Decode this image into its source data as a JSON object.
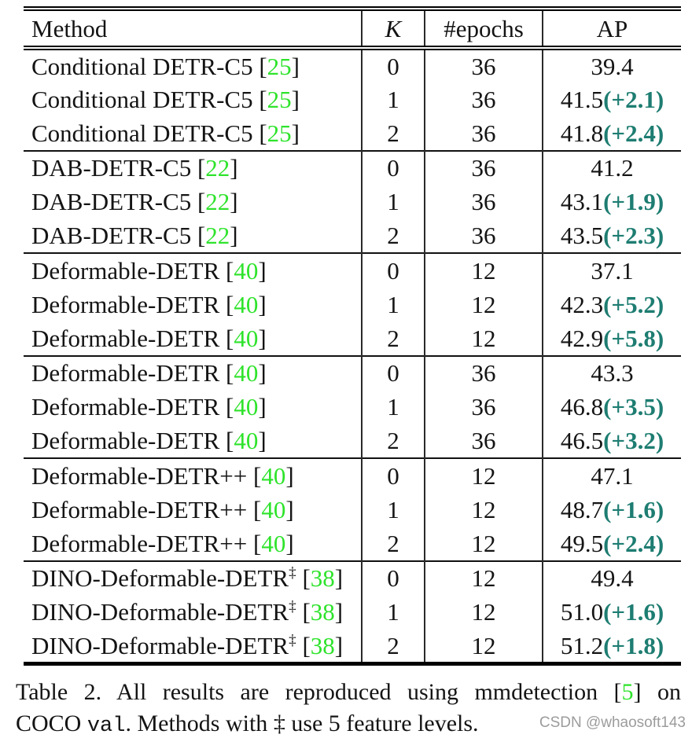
{
  "colors": {
    "text": "#141414",
    "citation_green": "#2ee32b",
    "delta_teal": "#1e7d72",
    "watermark_gray": "#9c9c9c"
  },
  "table": {
    "headers": {
      "method": "Method",
      "k": "K",
      "epochs": "#epochs",
      "ap": "AP"
    },
    "rows": [
      {
        "method": "Conditional DETR-C5",
        "sup": "",
        "cite": "[25]",
        "k": "0",
        "epochs": "36",
        "ap": "39.4",
        "delta": "",
        "group_start": false
      },
      {
        "method": "Conditional DETR-C5",
        "sup": "",
        "cite": "[25]",
        "k": "1",
        "epochs": "36",
        "ap": "41.5",
        "delta": "(+2.1)",
        "group_start": false
      },
      {
        "method": "Conditional DETR-C5",
        "sup": "",
        "cite": "[25]",
        "k": "2",
        "epochs": "36",
        "ap": "41.8",
        "delta": "(+2.4)",
        "group_start": false
      },
      {
        "method": "DAB-DETR-C5",
        "sup": "",
        "cite": "[22]",
        "k": "0",
        "epochs": "36",
        "ap": "41.2",
        "delta": "",
        "group_start": true
      },
      {
        "method": "DAB-DETR-C5",
        "sup": "",
        "cite": "[22]",
        "k": "1",
        "epochs": "36",
        "ap": "43.1",
        "delta": "(+1.9)",
        "group_start": false
      },
      {
        "method": "DAB-DETR-C5",
        "sup": "",
        "cite": "[22]",
        "k": "2",
        "epochs": "36",
        "ap": "43.5",
        "delta": "(+2.3)",
        "group_start": false
      },
      {
        "method": "Deformable-DETR",
        "sup": "",
        "cite": "[40]",
        "k": "0",
        "epochs": "12",
        "ap": "37.1",
        "delta": "",
        "group_start": true
      },
      {
        "method": "Deformable-DETR",
        "sup": "",
        "cite": "[40]",
        "k": "1",
        "epochs": "12",
        "ap": "42.3",
        "delta": "(+5.2)",
        "group_start": false
      },
      {
        "method": "Deformable-DETR",
        "sup": "",
        "cite": "[40]",
        "k": "2",
        "epochs": "12",
        "ap": "42.9",
        "delta": "(+5.8)",
        "group_start": false
      },
      {
        "method": "Deformable-DETR",
        "sup": "",
        "cite": "[40]",
        "k": "0",
        "epochs": "36",
        "ap": "43.3",
        "delta": "",
        "group_start": true
      },
      {
        "method": "Deformable-DETR",
        "sup": "",
        "cite": "[40]",
        "k": "1",
        "epochs": "36",
        "ap": "46.8",
        "delta": "(+3.5)",
        "group_start": false
      },
      {
        "method": "Deformable-DETR",
        "sup": "",
        "cite": "[40]",
        "k": "2",
        "epochs": "36",
        "ap": "46.5",
        "delta": "(+3.2)",
        "group_start": false
      },
      {
        "method": "Deformable-DETR++",
        "sup": "",
        "cite": "[40]",
        "k": "0",
        "epochs": "12",
        "ap": "47.1",
        "delta": "",
        "group_start": true
      },
      {
        "method": "Deformable-DETR++",
        "sup": "",
        "cite": "[40]",
        "k": "1",
        "epochs": "12",
        "ap": "48.7",
        "delta": "(+1.6)",
        "group_start": false
      },
      {
        "method": "Deformable-DETR++",
        "sup": "",
        "cite": "[40]",
        "k": "2",
        "epochs": "12",
        "ap": "49.5",
        "delta": "(+2.4)",
        "group_start": false
      },
      {
        "method": "DINO-Deformable-DETR",
        "sup": "‡",
        "cite": "[38]",
        "k": "0",
        "epochs": "12",
        "ap": "49.4",
        "delta": "",
        "group_start": true
      },
      {
        "method": "DINO-Deformable-DETR",
        "sup": "‡",
        "cite": "[38]",
        "k": "1",
        "epochs": "12",
        "ap": "51.0",
        "delta": "(+1.6)",
        "group_start": false
      },
      {
        "method": "DINO-Deformable-DETR",
        "sup": "‡",
        "cite": "[38]",
        "k": "2",
        "epochs": "12",
        "ap": "51.2",
        "delta": "(+1.8)",
        "group_start": false
      }
    ]
  },
  "caption": {
    "line1": [
      {
        "text": "Table 2.",
        "style": "normal"
      },
      {
        "text": "  All results are reproduced using mmdetection ",
        "style": "normal"
      },
      {
        "text": "[",
        "style": "normal"
      },
      {
        "text": "5",
        "style": "cite"
      },
      {
        "text": "]",
        "style": "normal"
      },
      {
        "text": " on",
        "style": "normal"
      }
    ],
    "line2": [
      {
        "text": "COCO ",
        "style": "normal"
      },
      {
        "text": "val",
        "style": "mono"
      },
      {
        "text": ". Methods with ",
        "style": "normal"
      },
      {
        "text": "‡",
        "style": "dagger"
      },
      {
        "text": " use 5 feature levels.",
        "style": "normal"
      }
    ]
  },
  "watermark": {
    "text": "CSDN @whaosoft143"
  }
}
